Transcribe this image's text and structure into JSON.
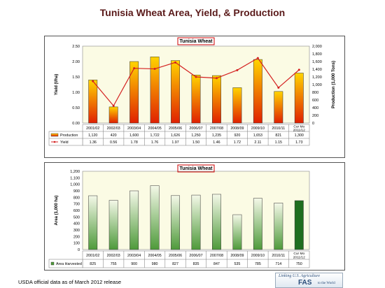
{
  "page_title": "Tunisia Wheat Area, Yield, & Production",
  "footer_note": "USDA official data as of March 2012 release",
  "logo": {
    "line1": "Linking U.S. Agriculture",
    "line2": "FAS",
    "line3": "to the World"
  },
  "colors": {
    "title": "#5a1a1a",
    "chart_title_border": "#cc0000",
    "plot_bg": "#fbfbe4",
    "bar_top": "#ffd400",
    "bar_bottom": "#e02000",
    "yield_line": "#d42020",
    "area_bar_light": "#f4f8e8",
    "area_bar_dark": "#4e9a3a",
    "area_bar_highlight": "#1f6e1f"
  },
  "chart_data": [
    {
      "type": "bar",
      "title": "Tunisia Wheat",
      "categories": [
        "2001/02",
        "2002/03",
        "2003/04",
        "2004/05",
        "2005/06",
        "2006/07",
        "2007/08",
        "2008/09",
        "2009/10",
        "2010/11",
        "Cur Mo 2011/12"
      ],
      "category_lines": [
        [
          "2001/02"
        ],
        [
          "2002/03"
        ],
        [
          "2003/04"
        ],
        [
          "2004/05"
        ],
        [
          "2005/06"
        ],
        [
          "2006/07"
        ],
        [
          "2007/08"
        ],
        [
          "2008/09"
        ],
        [
          "2009/10"
        ],
        [
          "2010/11"
        ],
        [
          "Cur Mo",
          "2011/12"
        ]
      ],
      "ylabel_left": "Yield (t/ha)",
      "ylabel_right": "Production (1,000 Tons)",
      "ylim_left": [
        0,
        2.5
      ],
      "ylim_right": [
        0,
        2000
      ],
      "yticks_left": [
        "0.00",
        "0.50",
        "1.00",
        "1.50",
        "2.00",
        "2.50"
      ],
      "yticks_right": [
        "0",
        "200",
        "400",
        "600",
        "800",
        "1,000",
        "1,200",
        "1,400",
        "1,600",
        "1,800",
        "2,000"
      ],
      "series": [
        {
          "name": "Production",
          "type": "bar",
          "axis": "right",
          "values": [
            1120,
            420,
            1600,
            1722,
            1626,
            1250,
            1235,
            920,
            1653,
            821,
            1300
          ],
          "labels": [
            "1,120",
            "420",
            "1,600",
            "1,722",
            "1,626",
            "1,250",
            "1,235",
            "920",
            "1,653",
            "821",
            "1,300"
          ]
        },
        {
          "name": "Yield",
          "type": "line",
          "axis": "left",
          "values": [
            1.36,
            0.56,
            1.78,
            1.76,
            1.97,
            1.5,
            1.46,
            1.72,
            2.11,
            1.15,
            1.73
          ],
          "labels": [
            "1.36",
            "0.56",
            "1.78",
            "1.76",
            "1.97",
            "1.50",
            "1.46",
            "1.72",
            "2.11",
            "1.15",
            "1.73"
          ]
        }
      ]
    },
    {
      "type": "bar",
      "title": "Tunisia Wheat",
      "categories": [
        "2001/02",
        "2002/03",
        "2003/04",
        "2004/05",
        "2005/06",
        "2006/07",
        "2007/08",
        "2008/09",
        "2009/10",
        "2010/11",
        "Cur Mo 2011/12"
      ],
      "category_lines": [
        [
          "2001/02"
        ],
        [
          "2002/03"
        ],
        [
          "2003/04"
        ],
        [
          "2004/05"
        ],
        [
          "2005/06"
        ],
        [
          "2006/07"
        ],
        [
          "2007/08"
        ],
        [
          "2008/09"
        ],
        [
          "2009/10"
        ],
        [
          "2010/11"
        ],
        [
          "Cur Mo",
          "2011/12"
        ]
      ],
      "ylabel": "Area (1,000 ha)",
      "ylim": [
        0,
        1200
      ],
      "yticks": [
        "0",
        "100",
        "200",
        "300",
        "400",
        "500",
        "600",
        "700",
        "800",
        "900",
        "1,000",
        "1,100",
        "1,200"
      ],
      "series": [
        {
          "name": "Area Harvested",
          "type": "bar",
          "values": [
            825,
            755,
            900,
            980,
            827,
            835,
            847,
            535,
            785,
            714,
            750
          ],
          "labels": [
            "825",
            "755",
            "900",
            "980",
            "827",
            "835",
            "847",
            "535",
            "785",
            "714",
            "750"
          ]
        }
      ]
    }
  ]
}
